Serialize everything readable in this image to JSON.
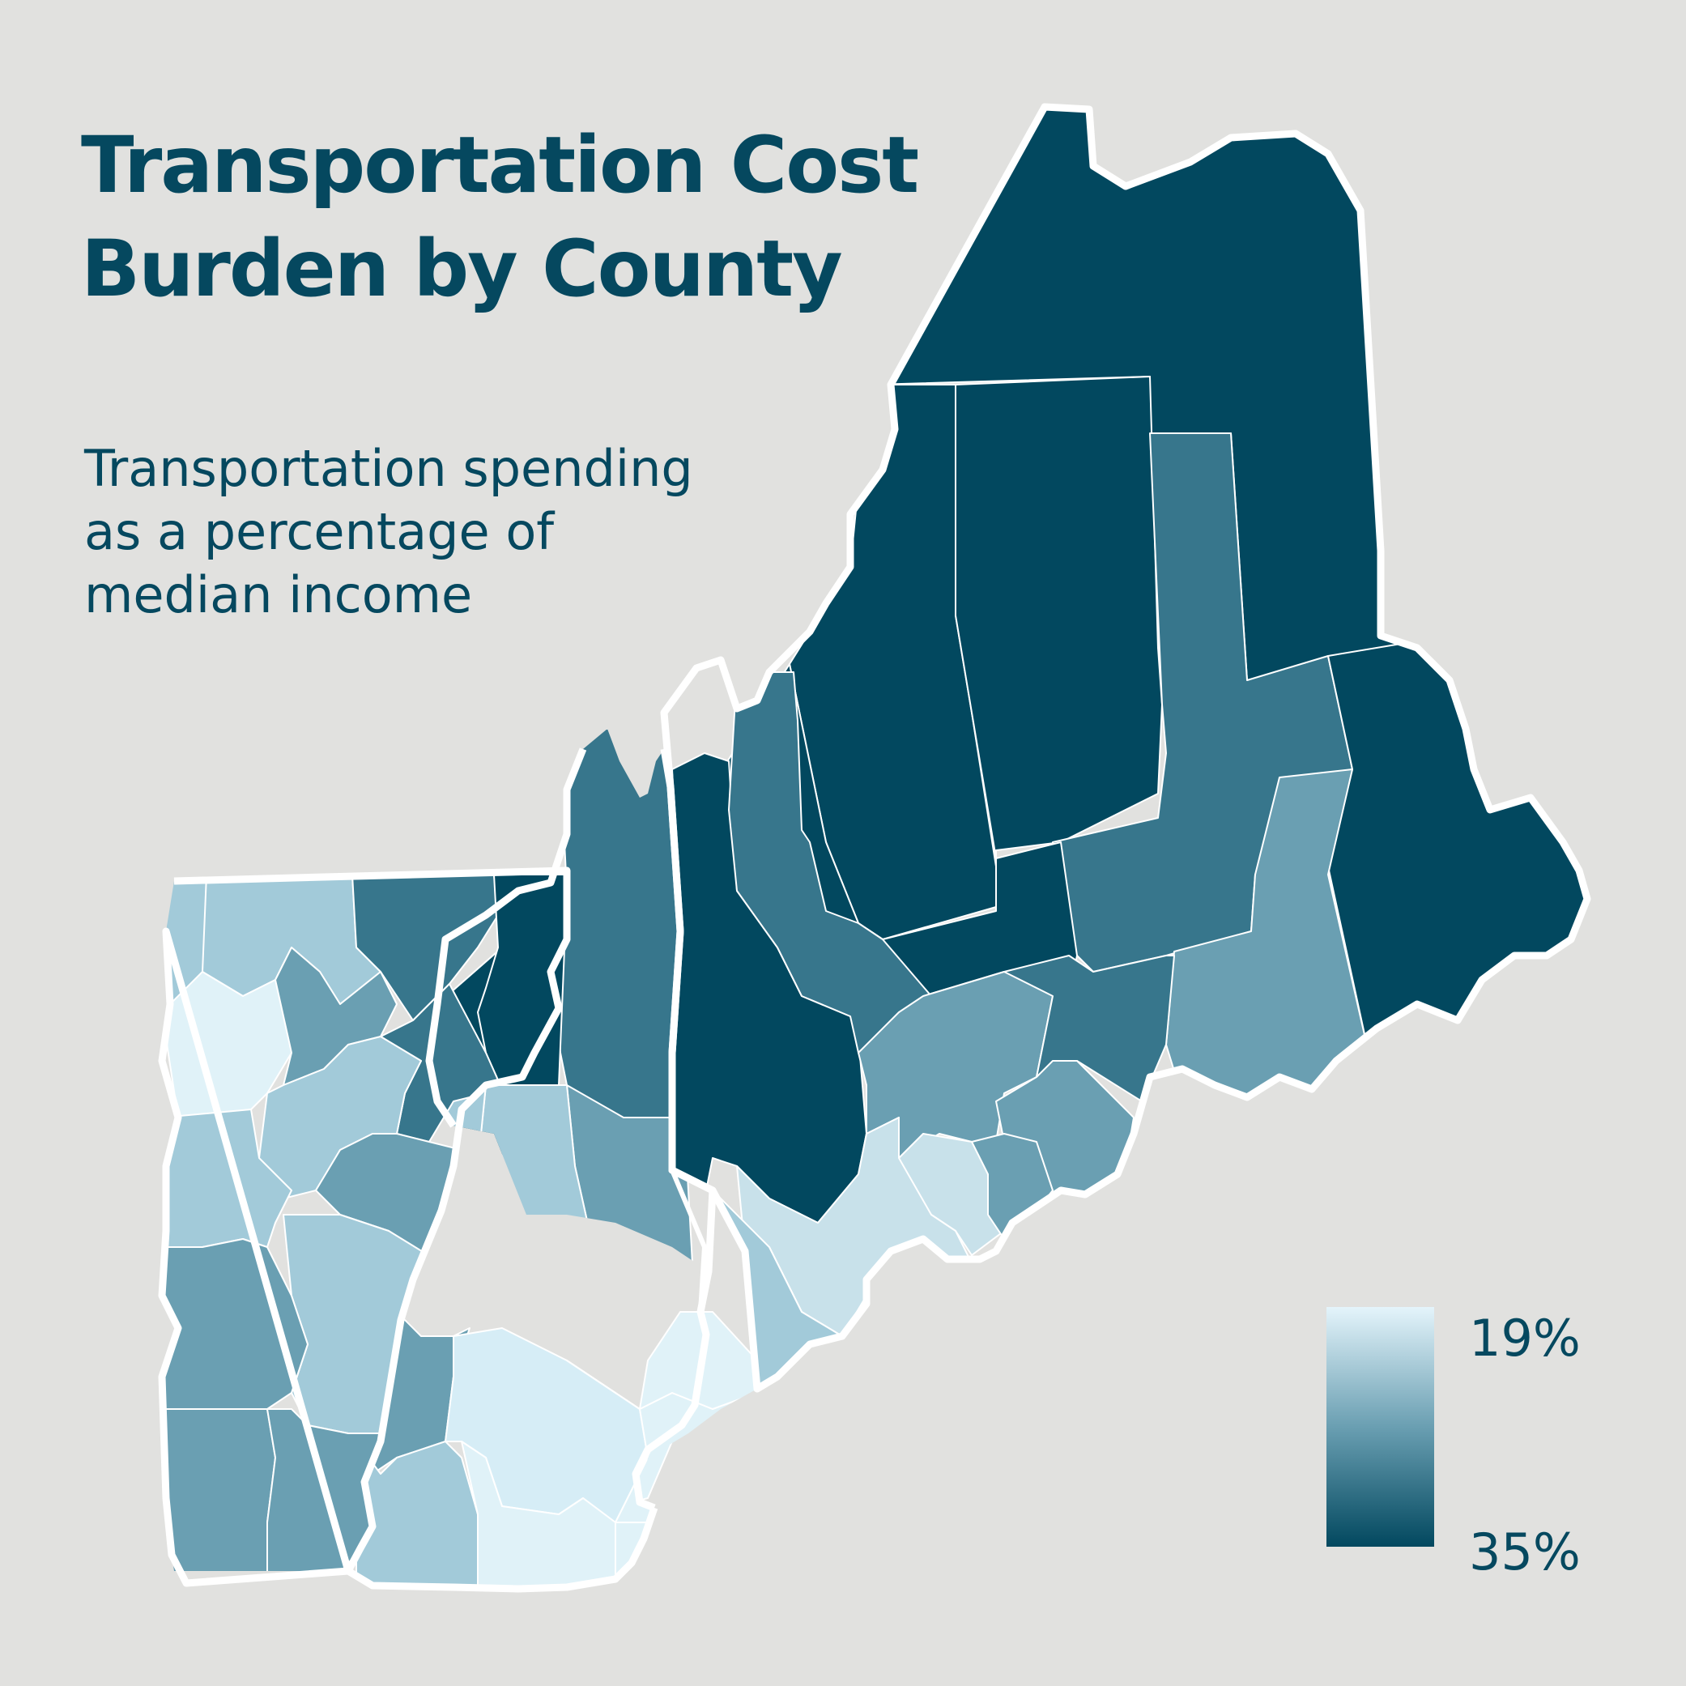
{
  "title": {
    "line1": "Transportation Cost",
    "line2": "Burden by County"
  },
  "subtitle": {
    "line1": "Transportation spending",
    "line2": "as a percentage of",
    "line3": "median income"
  },
  "legend": {
    "min_label": "19%",
    "max_label": "35%",
    "min_value": 19,
    "max_value": 35,
    "min_color": "#e4f4fb",
    "mid_color": "#6a9fb2",
    "max_color": "#02485f"
  },
  "colors": {
    "background": "#e1e1df",
    "text": "#05485f",
    "border": "#ffffff"
  }
}
